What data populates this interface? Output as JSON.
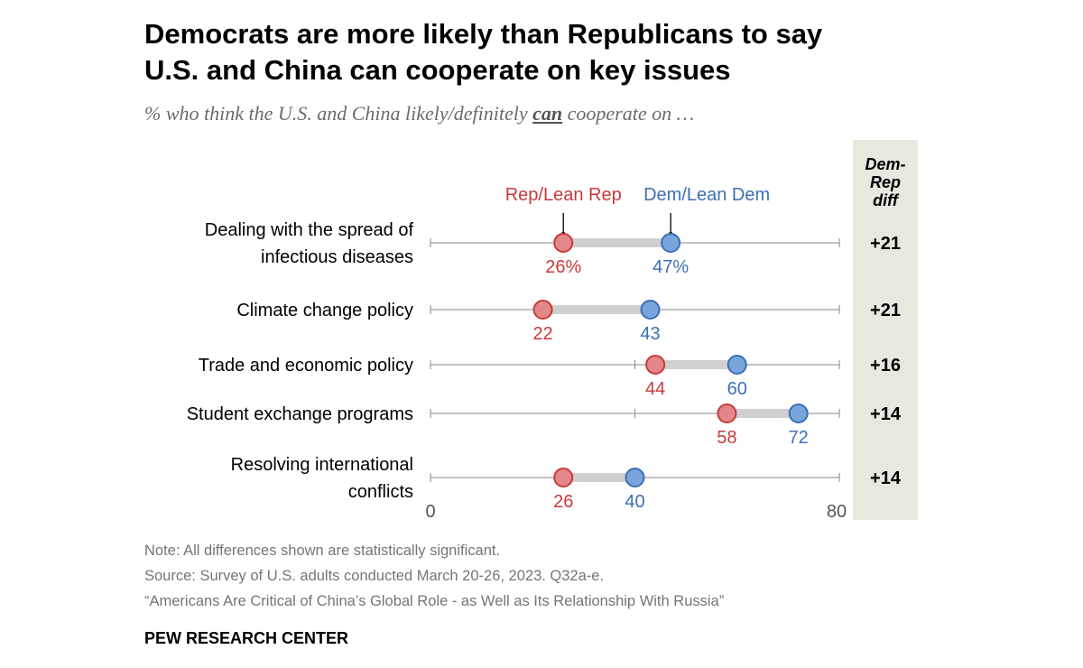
{
  "title_line1": "Democrats are more likely than Republicans to say",
  "title_line2": "U.S. and China can cooperate on key issues",
  "subtitle_pre": "% who think the U.S. and China likely/definitely ",
  "subtitle_em": "can",
  "subtitle_post": " cooperate on …",
  "diff_header": [
    "Dem-",
    "Rep",
    "diff"
  ],
  "note": "Note: All differences shown are statistically significant.",
  "source": "Source: Survey of U.S. adults conducted March 20-26, 2023. Q32a-e.",
  "report": "“Americans Are Critical of China’s Global Role - as Well as Its Relationship With Russia”",
  "brand": "PEW RESEARCH CENTER",
  "colors": {
    "rep": "#c83a3a",
    "rep_fill": "#e3888a",
    "dem": "#3d6fb6",
    "dem_fill": "#79a4dc",
    "diff_bg": "#e9e8de",
    "range_bar": "#d0d0d0",
    "axis": "#888888"
  },
  "chart_data": {
    "type": "dot-plot",
    "xlim": [
      0,
      80
    ],
    "x_ticks": [
      "0",
      "80"
    ],
    "series_names": [
      "Rep/Lean Rep",
      "Dem/Lean Dem"
    ],
    "rows": [
      {
        "label": [
          "Dealing with the spread of",
          "infectious diseases"
        ],
        "rep": 26,
        "dem": 47,
        "rep_label": "26%",
        "dem_label": "47%",
        "diff": "+21"
      },
      {
        "label": [
          "Climate change policy"
        ],
        "rep": 22,
        "dem": 43,
        "rep_label": "22",
        "dem_label": "43",
        "diff": "+21"
      },
      {
        "label": [
          "Trade and economic policy"
        ],
        "rep": 44,
        "dem": 60,
        "rep_label": "44",
        "dem_label": "60",
        "diff": "+16"
      },
      {
        "label": [
          "Student exchange programs"
        ],
        "rep": 58,
        "dem": 72,
        "rep_label": "58",
        "dem_label": "72",
        "diff": "+14"
      },
      {
        "label": [
          "Resolving international",
          "conflicts"
        ],
        "rep": 26,
        "dem": 40,
        "rep_label": "26",
        "dem_label": "40",
        "diff": "+14"
      }
    ]
  }
}
